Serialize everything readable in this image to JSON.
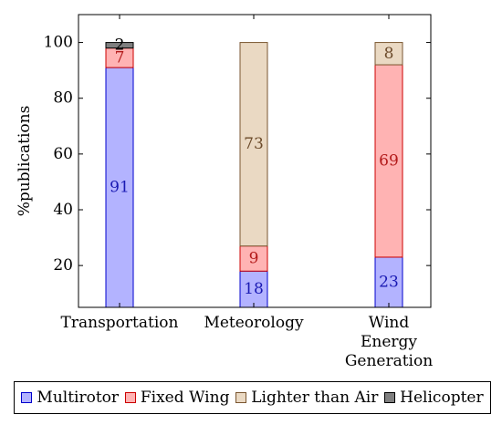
{
  "chart_data": {
    "type": "bar",
    "stacked": true,
    "title": "",
    "xlabel": "",
    "ylabel": "%publications",
    "ylim": [
      5,
      110
    ],
    "yticks": [
      20,
      40,
      60,
      80,
      100
    ],
    "grid": false,
    "legend_position": "bottom",
    "categories": [
      [
        "Transportation"
      ],
      [
        "Meteorology"
      ],
      [
        "Wind",
        "Energy",
        "Generation"
      ]
    ],
    "series": [
      {
        "name": "Multirotor",
        "values": [
          91,
          18,
          23
        ],
        "labels": [
          "91",
          "18",
          "23"
        ],
        "fill": "#b3b3ff",
        "stroke": "#0000cc",
        "text_color": "#1a1ab3"
      },
      {
        "name": "Fixed Wing",
        "values": [
          7,
          9,
          69
        ],
        "labels": [
          "7",
          "9",
          "69"
        ],
        "fill": "#ffb3b3",
        "stroke": "#cc0000",
        "text_color": "#b31a1a"
      },
      {
        "name": "Lighter than Air",
        "values": [
          0,
          73,
          8
        ],
        "labels": [
          "",
          "73",
          "8"
        ],
        "fill": "#ead9c3",
        "stroke": "#7a5630",
        "text_color": "#6b4a2a"
      },
      {
        "name": "Helicopter",
        "values": [
          2,
          0,
          0
        ],
        "labels": [
          "2",
          "",
          ""
        ],
        "fill": "#7f7f7f",
        "stroke": "#000000",
        "text_color": "#000000"
      }
    ]
  }
}
